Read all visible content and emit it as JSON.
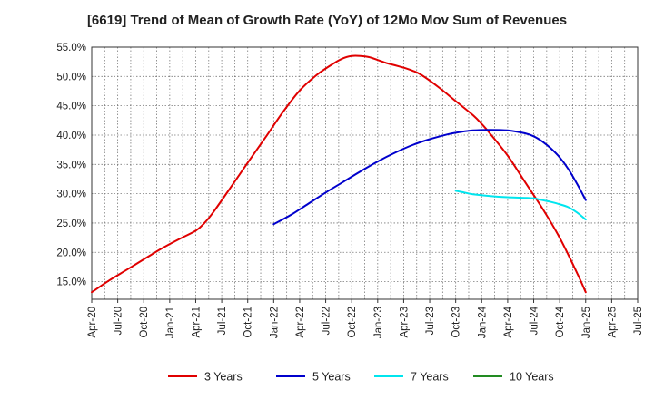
{
  "chart_data": {
    "type": "line",
    "title": "[6619]  Trend of Mean of Growth Rate (YoY) of 12Mo Mov Sum of Revenues",
    "xlabel": "",
    "ylabel": "",
    "y_unit": "%",
    "ylim": [
      12.0,
      55.0
    ],
    "y_ticks": [
      15.0,
      20.0,
      25.0,
      30.0,
      35.0,
      40.0,
      45.0,
      50.0,
      55.0
    ],
    "y_tick_labels": [
      "15.0%",
      "20.0%",
      "25.0%",
      "30.0%",
      "35.0%",
      "40.0%",
      "45.0%",
      "50.0%",
      "55.0%"
    ],
    "x_tick_labels": [
      "Apr-20",
      "Jul-20",
      "Oct-20",
      "Jan-21",
      "Apr-21",
      "Jul-21",
      "Oct-21",
      "Jan-22",
      "Apr-22",
      "Jul-22",
      "Oct-22",
      "Jan-23",
      "Apr-23",
      "Jul-23",
      "Oct-23",
      "Jan-24",
      "Apr-24",
      "Jul-24",
      "Oct-24",
      "Jan-25",
      "Apr-25",
      "Jul-25"
    ],
    "x_unit": "months since Apr-20",
    "grid": true,
    "legend_position": "bottom",
    "series": [
      {
        "name": "3 Years",
        "color": "#e00000",
        "points": [
          [
            0,
            13.2
          ],
          [
            2,
            15.2
          ],
          [
            4,
            17.0
          ],
          [
            6,
            18.8
          ],
          [
            8,
            20.6
          ],
          [
            10,
            22.2
          ],
          [
            12,
            23.7
          ],
          [
            13,
            25.0
          ],
          [
            14,
            26.8
          ],
          [
            16,
            31.0
          ],
          [
            18,
            35.3
          ],
          [
            20,
            39.5
          ],
          [
            22,
            43.8
          ],
          [
            24,
            47.6
          ],
          [
            26,
            50.3
          ],
          [
            28,
            52.3
          ],
          [
            29,
            53.1
          ],
          [
            30,
            53.5
          ],
          [
            31,
            53.5
          ],
          [
            32,
            53.3
          ],
          [
            33,
            52.8
          ],
          [
            34,
            52.3
          ],
          [
            35,
            51.9
          ],
          [
            36,
            51.5
          ],
          [
            37,
            51.0
          ],
          [
            38,
            50.3
          ],
          [
            40,
            48.2
          ],
          [
            42,
            45.8
          ],
          [
            44,
            43.4
          ],
          [
            45,
            41.9
          ],
          [
            46,
            40.2
          ],
          [
            48,
            36.5
          ],
          [
            50,
            32.0
          ],
          [
            52,
            27.5
          ],
          [
            54,
            22.5
          ],
          [
            56,
            16.5
          ],
          [
            57,
            13.2
          ]
        ]
      },
      {
        "name": "5 Years",
        "color": "#0000cc",
        "points": [
          [
            21,
            24.8
          ],
          [
            23,
            26.4
          ],
          [
            25,
            28.3
          ],
          [
            27,
            30.2
          ],
          [
            29,
            32.0
          ],
          [
            31,
            33.8
          ],
          [
            33,
            35.5
          ],
          [
            35,
            37.0
          ],
          [
            37,
            38.3
          ],
          [
            39,
            39.3
          ],
          [
            41,
            40.1
          ],
          [
            42,
            40.4
          ],
          [
            44,
            40.8
          ],
          [
            46,
            40.9
          ],
          [
            48,
            40.8
          ],
          [
            50,
            40.3
          ],
          [
            51,
            39.8
          ],
          [
            52,
            38.9
          ],
          [
            53,
            37.7
          ],
          [
            54,
            36.2
          ],
          [
            55,
            34.2
          ],
          [
            56,
            31.7
          ],
          [
            57,
            28.9
          ]
        ]
      },
      {
        "name": "7 Years",
        "color": "#00e5ee",
        "points": [
          [
            42,
            30.5
          ],
          [
            43,
            30.2
          ],
          [
            44,
            29.9
          ],
          [
            46,
            29.6
          ],
          [
            48,
            29.4
          ],
          [
            50,
            29.3
          ],
          [
            51,
            29.2
          ],
          [
            52,
            28.9
          ],
          [
            53,
            28.6
          ],
          [
            54,
            28.2
          ],
          [
            55,
            27.7
          ],
          [
            56,
            26.8
          ],
          [
            57,
            25.6
          ]
        ]
      },
      {
        "name": "10 Years",
        "color": "#228b22",
        "points": []
      }
    ]
  }
}
